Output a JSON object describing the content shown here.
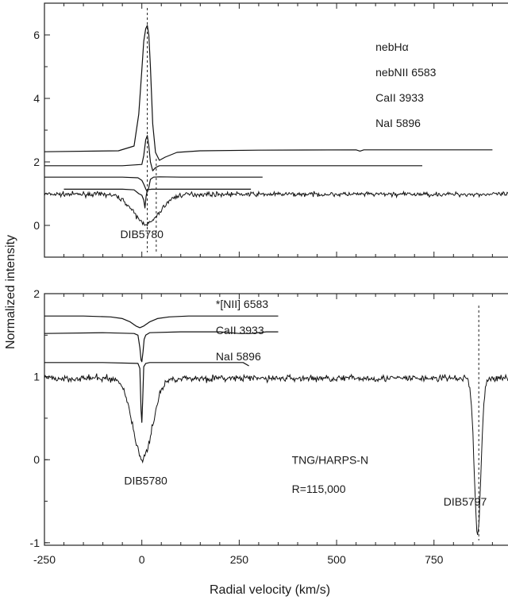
{
  "chart_data": {
    "type": "line",
    "xlabel": "Radial velocity (km/s)",
    "ylabel": "Normalized intensity",
    "xlim": [
      -250,
      940
    ],
    "x_ticks": [
      -250,
      0,
      250,
      500,
      750
    ],
    "panels": [
      {
        "name": "top",
        "ylim": [
          -1.0,
          7.0
        ],
        "y_ticks": [
          0,
          2,
          4,
          6
        ],
        "series": [
          {
            "name": "nebHα",
            "x": [
              -250,
              -60,
              -20,
              -8,
              0,
              5,
              10,
              14,
              18,
              22,
              28,
              35,
              45,
              60,
              90,
              150,
              300,
              550,
              560,
              570,
              700,
              900
            ],
            "y": [
              2.32,
              2.35,
              2.5,
              3.5,
              4.9,
              5.8,
              6.2,
              6.3,
              6.0,
              5.0,
              3.2,
              2.3,
              2.05,
              2.15,
              2.3,
              2.35,
              2.37,
              2.38,
              2.34,
              2.38,
              2.38,
              2.38
            ]
          },
          {
            "name": "nebNII 6583",
            "x": [
              -250,
              -50,
              0,
              5,
              10,
              14,
              18,
              22,
              28,
              35,
              45,
              100,
              300,
              500,
              720
            ],
            "y": [
              1.88,
              1.88,
              1.92,
              2.2,
              2.7,
              2.83,
              2.5,
              2.0,
              1.72,
              1.82,
              1.88,
              1.88,
              1.88,
              1.88,
              1.88
            ]
          },
          {
            "name": "CaII 3933",
            "x": [
              -250,
              -50,
              -10,
              0,
              5,
              10,
              14,
              18,
              22,
              30,
              45,
              100,
              310
            ],
            "y": [
              1.52,
              1.52,
              1.5,
              1.42,
              1.3,
              1.15,
              1.05,
              1.2,
              1.45,
              1.52,
              1.53,
              1.52,
              1.52
            ]
          },
          {
            "name": "NaI 5896",
            "x": [
              -200,
              -50,
              -20,
              -8,
              0,
              5,
              8,
              11,
              14,
              18,
              25,
              35,
              100,
              280
            ],
            "y": [
              1.14,
              1.14,
              1.12,
              1.0,
              0.95,
              0.8,
              0.55,
              0.92,
              1.12,
              1.13,
              1.14,
              1.14,
              1.14,
              1.14
            ]
          }
        ],
        "annotations": [
          {
            "text": "DIB5780",
            "x": 0,
            "y": -0.4
          }
        ],
        "legend_texts": [
          "nebHα",
          "nebNII 6583",
          "CaII 3933",
          "NaI 5896"
        ],
        "vlines": [
          14,
          37
        ]
      },
      {
        "name": "bottom",
        "ylim": [
          -1.03,
          2.0
        ],
        "y_ticks": [
          -1,
          0,
          1,
          2
        ],
        "series": [
          {
            "name": "*[NII] 6583",
            "x": [
              -250,
              -150,
              -80,
              -50,
              -30,
              -15,
              -5,
              5,
              20,
              40,
              70,
              120,
              200,
              350
            ],
            "y": [
              1.73,
              1.73,
              1.72,
              1.7,
              1.66,
              1.61,
              1.59,
              1.61,
              1.66,
              1.7,
              1.72,
              1.73,
              1.73,
              1.73
            ]
          },
          {
            "name": "CaII 3933",
            "x": [
              -250,
              -100,
              -20,
              -10,
              -5,
              -2,
              0,
              3,
              6,
              10,
              20,
              100,
              200,
              250,
              280,
              320,
              350
            ],
            "y": [
              1.52,
              1.53,
              1.52,
              1.5,
              1.35,
              1.2,
              1.18,
              1.3,
              1.45,
              1.5,
              1.53,
              1.54,
              1.54,
              1.52,
              1.52,
              1.54,
              1.54
            ],
            "display": [
              "CaII 3933"
            ]
          },
          {
            "name": "NaI 5896",
            "x": [
              -250,
              -100,
              -10,
              -5,
              -2,
              0,
              2,
              5,
              10,
              20,
              100,
              200,
              260,
              275
            ],
            "y": [
              1.17,
              1.17,
              1.16,
              1.1,
              0.6,
              0.45,
              0.7,
              1.12,
              1.16,
              1.17,
              1.17,
              1.17,
              1.17,
              1.13
            ]
          }
        ],
        "legend_texts": [
          "*[NII] 6583",
          "CaII 3933",
          "NaI 5896"
        ],
        "annotations": [
          {
            "text": "DIB5780",
            "x": 10,
            "y": -0.3
          },
          {
            "text": "TNG/HARPS-N",
            "x": 385,
            "y": -0.05
          },
          {
            "text": "R=115,000",
            "x": 385,
            "y": -0.4
          },
          {
            "text": "DIB5797",
            "x": 830,
            "y": -0.55
          }
        ],
        "vlines": [
          865
        ]
      }
    ],
    "noisy_spectrum_top": {
      "continuum": 0.98,
      "dip_center": 12,
      "dip_depth": 0.93,
      "dip_width": 48
    },
    "noisy_spectrum_bottom": {
      "continuum": 0.98,
      "dip1_center": 2,
      "dip1_depth": 0.97,
      "dip1_width": 35,
      "dip2_center": 862,
      "dip2_depth": 1.88,
      "dip2_width": 12
    },
    "grid": false
  }
}
